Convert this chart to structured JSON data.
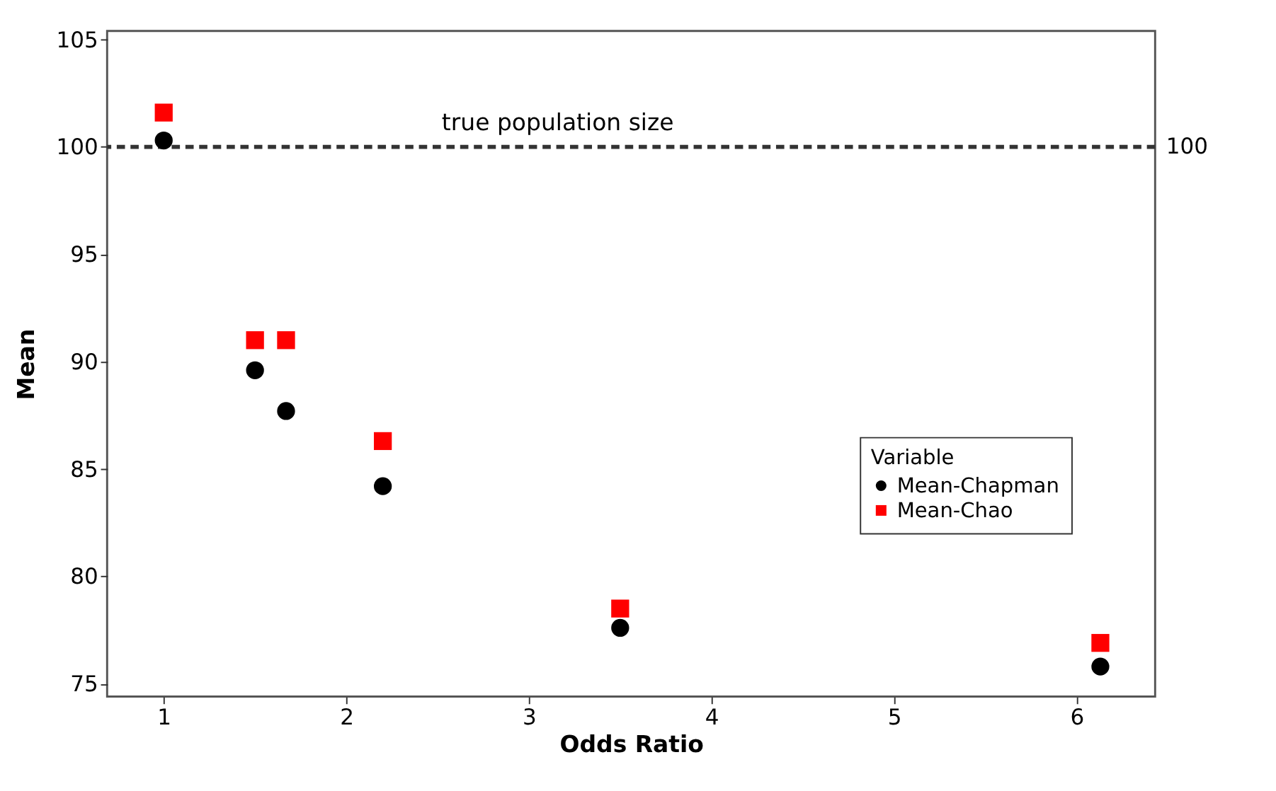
{
  "chart_data": {
    "type": "scatter",
    "xlabel": "Odds Ratio",
    "ylabel": "Mean",
    "legend_title": "Variable",
    "x": [
      1,
      1.5,
      1.67,
      2.2,
      3.5,
      6.13
    ],
    "series": [
      {
        "name": "Mean-Chapman",
        "color": "#000000",
        "marker": "circle",
        "values": [
          100.3,
          89.6,
          87.7,
          84.2,
          77.6,
          75.8
        ]
      },
      {
        "name": "Mean-Chao",
        "color": "#ff0000",
        "marker": "square",
        "values": [
          101.6,
          91.0,
          91.0,
          86.3,
          78.5,
          76.9
        ]
      }
    ],
    "xlim": [
      0.69,
      6.43
    ],
    "ylim": [
      74.4,
      105.4
    ],
    "xticks": [
      1,
      2,
      3,
      4,
      5,
      6
    ],
    "yticks": [
      75,
      80,
      85,
      90,
      95,
      100,
      105
    ],
    "ref_lines": [
      {
        "axis": "y",
        "value": 100,
        "label": "true population size",
        "color": "#333333",
        "line_style": "dashed"
      }
    ],
    "annotations": [
      "100"
    ],
    "grid": false,
    "legend": "right"
  }
}
